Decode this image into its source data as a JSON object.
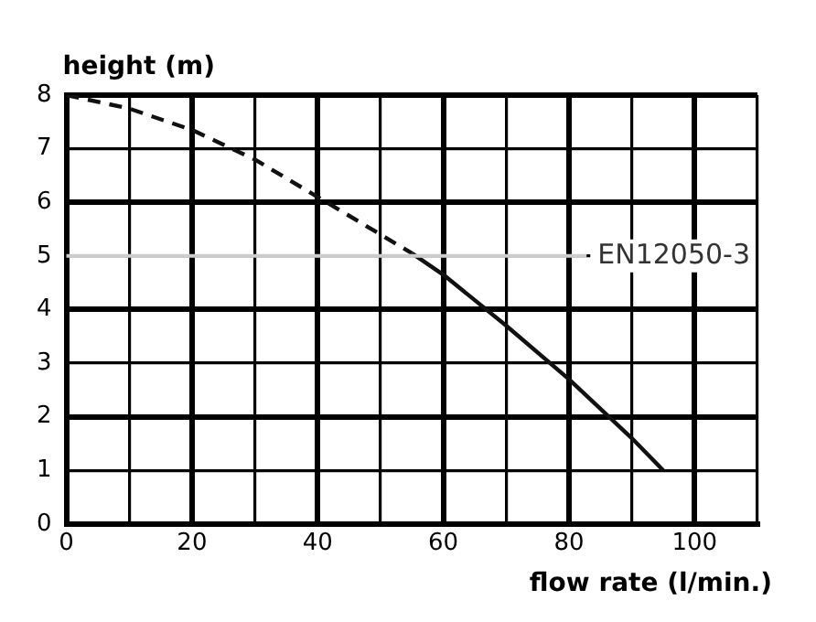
{
  "chart_data": {
    "type": "line",
    "xlabel": "flow rate (l/min.)",
    "ylabel": "height (m)",
    "series": [
      {
        "color": "#111111",
        "line_style": "dashed",
        "x": [
          0,
          10,
          20,
          30,
          40,
          50,
          55
        ],
        "values": [
          8,
          7.75,
          7.35,
          6.8,
          6.1,
          5.4,
          5.05
        ]
      },
      {
        "color": "#111111",
        "line_style": "solid",
        "x": [
          55,
          60,
          70,
          80,
          90,
          95
        ],
        "values": [
          5.05,
          4.65,
          3.7,
          2.7,
          1.6,
          1
        ]
      }
    ],
    "xlim": [
      0,
      110
    ],
    "xticks": [
      0,
      {
        "value": 10,
        "label": null
      },
      20,
      {
        "value": 30,
        "label": null
      },
      40,
      {
        "value": 50,
        "label": null
      },
      60,
      {
        "value": 70,
        "label": null
      },
      80,
      {
        "value": 90,
        "label": null
      },
      100,
      {
        "value": 110,
        "label": null
      }
    ],
    "ylim": [
      0,
      8
    ],
    "yticks": [
      0,
      1,
      2,
      3,
      4,
      5,
      6,
      7,
      8
    ],
    "ref_lines": [
      {
        "axis": "y",
        "value": 5,
        "label": "EN12050-3",
        "color": "#cccccc"
      }
    ],
    "grid": true,
    "legend": false,
    "marker": "none"
  }
}
